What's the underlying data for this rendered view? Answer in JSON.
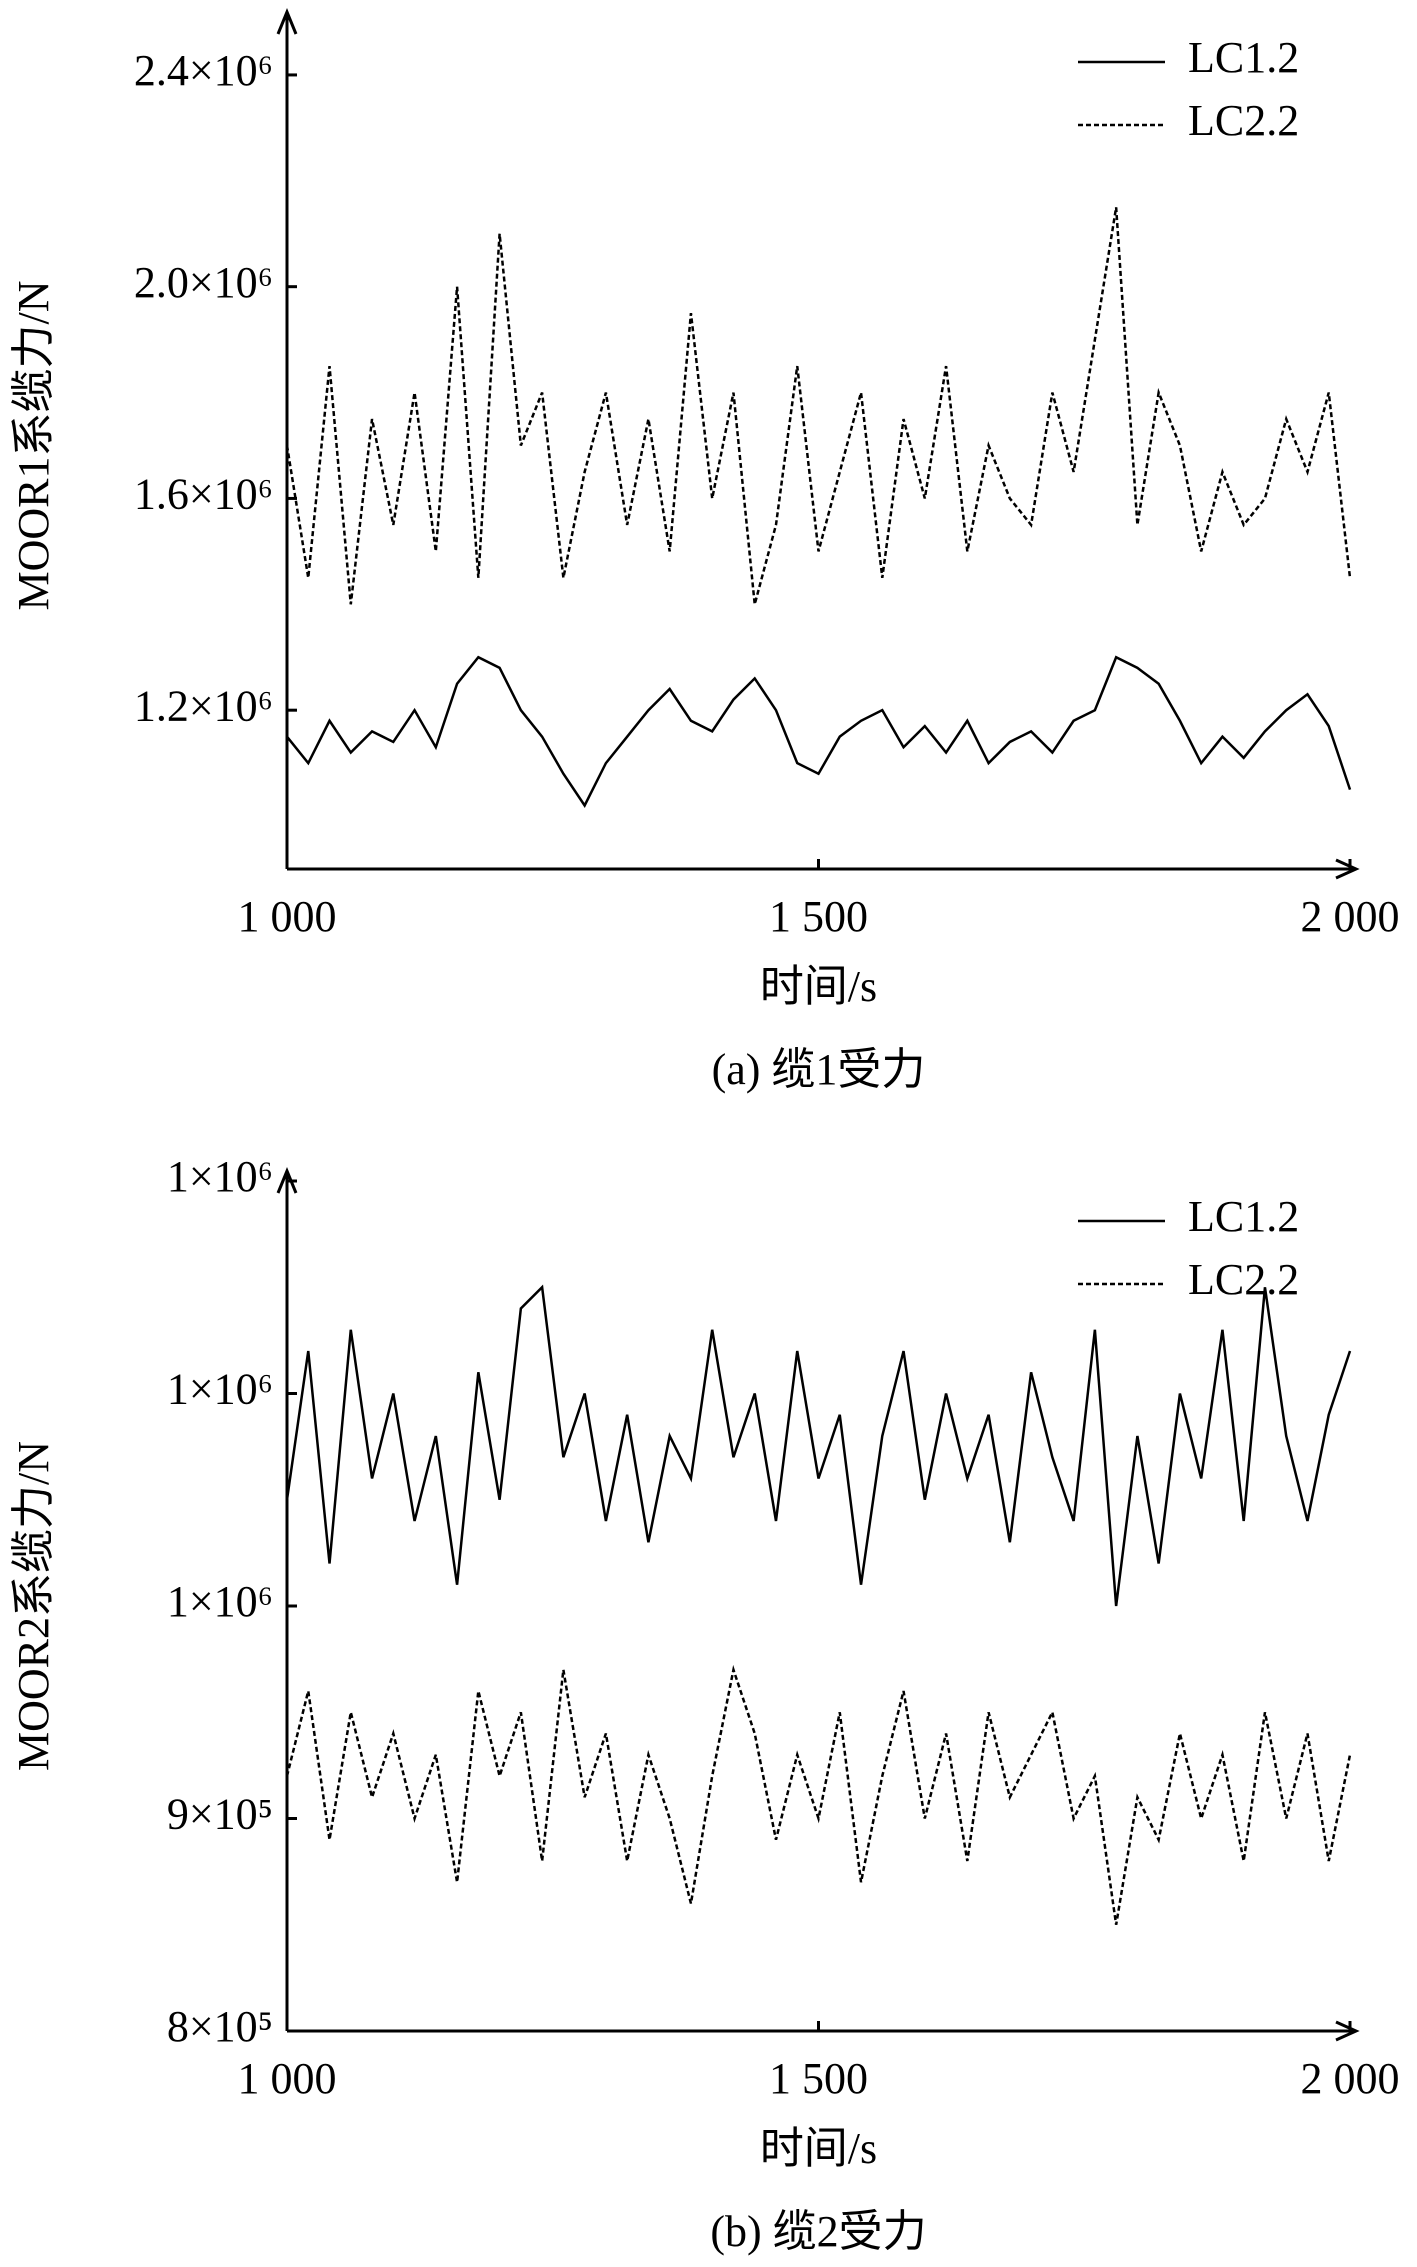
{
  "chart_data": [
    {
      "type": "line",
      "caption": "(a) 缆1受力",
      "xlabel": "时间/s",
      "ylabel": "MOOR1系缆力/N",
      "xlim": [
        1000,
        2000
      ],
      "xticks": [
        {
          "value": 1000,
          "label": "1 000"
        },
        {
          "value": 1500,
          "label": "1 500"
        },
        {
          "value": 2000,
          "label": "2 000"
        }
      ],
      "ylim": [
        900000,
        2500000
      ],
      "yticks": [
        {
          "value": 1200000,
          "label": "1.2×10⁶"
        },
        {
          "value": 1600000,
          "label": "1.6×10⁶"
        },
        {
          "value": 2000000,
          "label": "2.0×10⁶"
        },
        {
          "value": 2400000,
          "label": "2.4×10⁶"
        }
      ],
      "grid": false,
      "legend": "upper right",
      "x": [
        1000,
        1020,
        1040,
        1060,
        1080,
        1100,
        1120,
        1140,
        1160,
        1180,
        1200,
        1220,
        1240,
        1260,
        1280,
        1300,
        1320,
        1340,
        1360,
        1380,
        1400,
        1420,
        1440,
        1460,
        1480,
        1500,
        1520,
        1540,
        1560,
        1580,
        1600,
        1620,
        1640,
        1660,
        1680,
        1700,
        1720,
        1740,
        1760,
        1780,
        1800,
        1820,
        1840,
        1860,
        1880,
        1900,
        1920,
        1940,
        1960,
        1980,
        2000
      ],
      "series": [
        {
          "name": "LC1.2",
          "color": "#000000",
          "linestyle": "solid",
          "values": [
            1150000,
            1100000,
            1180000,
            1120000,
            1160000,
            1140000,
            1200000,
            1130000,
            1250000,
            1300000,
            1280000,
            1200000,
            1150000,
            1080000,
            1020000,
            1100000,
            1150000,
            1200000,
            1240000,
            1180000,
            1160000,
            1220000,
            1260000,
            1200000,
            1100000,
            1080000,
            1150000,
            1180000,
            1200000,
            1130000,
            1170000,
            1120000,
            1180000,
            1100000,
            1140000,
            1160000,
            1120000,
            1180000,
            1200000,
            1300000,
            1280000,
            1250000,
            1180000,
            1100000,
            1150000,
            1110000,
            1160000,
            1200000,
            1230000,
            1170000,
            1050000
          ]
        },
        {
          "name": "LC2.2",
          "color": "#000000",
          "linestyle": "dashed",
          "values": [
            1700000,
            1450000,
            1850000,
            1400000,
            1750000,
            1550000,
            1800000,
            1500000,
            2000000,
            1450000,
            2100000,
            1700000,
            1800000,
            1450000,
            1650000,
            1800000,
            1550000,
            1750000,
            1500000,
            1950000,
            1600000,
            1800000,
            1400000,
            1550000,
            1850000,
            1500000,
            1650000,
            1800000,
            1450000,
            1750000,
            1600000,
            1850000,
            1500000,
            1700000,
            1600000,
            1550000,
            1800000,
            1650000,
            1900000,
            2150000,
            1550000,
            1800000,
            1700000,
            1500000,
            1650000,
            1550000,
            1600000,
            1750000,
            1650000,
            1800000,
            1450000
          ]
        }
      ]
    },
    {
      "type": "line",
      "caption": "(b) 缆2受力",
      "xlabel": "时间/s",
      "ylabel": "MOOR2系缆力/N",
      "xlim": [
        1000,
        2000
      ],
      "xticks": [
        {
          "value": 1000,
          "label": "1 000"
        },
        {
          "value": 1500,
          "label": "1 500"
        },
        {
          "value": 2000,
          "label": "2 000"
        }
      ],
      "ylim": [
        800000,
        1200000
      ],
      "yticks": [
        {
          "value": 800000,
          "label": "8×10⁵"
        },
        {
          "value": 900000,
          "label": "9×10⁵"
        },
        {
          "value": 1000000,
          "label": "1×10⁶"
        },
        {
          "value": 1100000,
          "label": "1×10⁶"
        },
        {
          "value": 1200000,
          "label": "1×10⁶"
        }
      ],
      "grid": false,
      "legend": "upper right",
      "x": [
        1000,
        1020,
        1040,
        1060,
        1080,
        1100,
        1120,
        1140,
        1160,
        1180,
        1200,
        1220,
        1240,
        1260,
        1280,
        1300,
        1320,
        1340,
        1360,
        1380,
        1400,
        1420,
        1440,
        1460,
        1480,
        1500,
        1520,
        1540,
        1560,
        1580,
        1600,
        1620,
        1640,
        1660,
        1680,
        1700,
        1720,
        1740,
        1760,
        1780,
        1800,
        1820,
        1840,
        1860,
        1880,
        1900,
        1920,
        1940,
        1960,
        1980,
        2000
      ],
      "series": [
        {
          "name": "LC1.2",
          "color": "#000000",
          "linestyle": "solid",
          "values": [
            1050000,
            1120000,
            1020000,
            1130000,
            1060000,
            1100000,
            1040000,
            1080000,
            1010000,
            1110000,
            1050000,
            1140000,
            1150000,
            1070000,
            1100000,
            1040000,
            1090000,
            1030000,
            1080000,
            1060000,
            1130000,
            1070000,
            1100000,
            1040000,
            1120000,
            1060000,
            1090000,
            1010000,
            1080000,
            1120000,
            1050000,
            1100000,
            1060000,
            1090000,
            1030000,
            1110000,
            1070000,
            1040000,
            1130000,
            1000000,
            1080000,
            1020000,
            1100000,
            1060000,
            1130000,
            1040000,
            1150000,
            1080000,
            1040000,
            1090000,
            1120000
          ]
        },
        {
          "name": "LC2.2",
          "color": "#000000",
          "linestyle": "dashed",
          "values": [
            920000,
            960000,
            890000,
            950000,
            910000,
            940000,
            900000,
            930000,
            870000,
            960000,
            920000,
            950000,
            880000,
            970000,
            910000,
            940000,
            880000,
            930000,
            900000,
            860000,
            920000,
            970000,
            940000,
            890000,
            930000,
            900000,
            950000,
            870000,
            920000,
            960000,
            900000,
            940000,
            880000,
            950000,
            910000,
            930000,
            950000,
            900000,
            920000,
            850000,
            910000,
            890000,
            940000,
            900000,
            930000,
            880000,
            950000,
            900000,
            940000,
            880000,
            930000
          ]
        }
      ]
    }
  ]
}
